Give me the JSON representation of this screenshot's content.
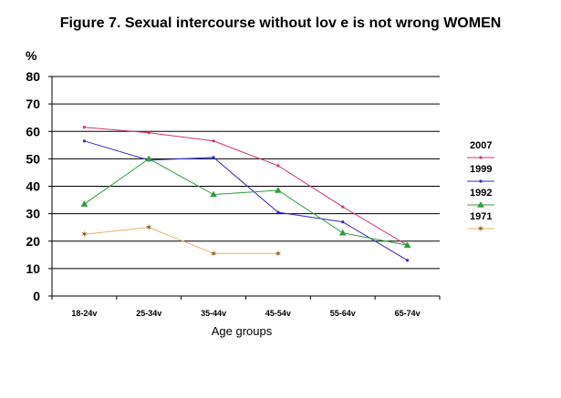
{
  "chart_data": {
    "type": "line",
    "title": "Figure 7. Sexual intercourse without lov e is not wrong WOMEN",
    "xlabel": "Age groups",
    "ylabel": "%",
    "ylim": [
      0,
      80
    ],
    "yticks": [
      0,
      10,
      20,
      30,
      40,
      50,
      60,
      70,
      80
    ],
    "grid": true,
    "legend_position": "right",
    "categories": [
      "18-24v",
      "25-34v",
      "35-44v",
      "45-54v",
      "55-64v",
      "65-74v"
    ],
    "series": [
      {
        "name": "2007",
        "color": "#d6336c",
        "marker": "dot",
        "values": [
          61.5,
          59.5,
          56.5,
          47.5,
          32.5,
          18.5
        ]
      },
      {
        "name": "1999",
        "color": "#2a2ad6",
        "marker": "dot",
        "values": [
          56.5,
          49.5,
          50.5,
          30.5,
          27,
          13
        ]
      },
      {
        "name": "1992",
        "color": "#2f9e3a",
        "marker": "triangle",
        "values": [
          33.5,
          50,
          37,
          38.5,
          23,
          18.5
        ]
      },
      {
        "name": "1971",
        "color": "#e8b36a",
        "marker": "star",
        "values": [
          22.5,
          25,
          15.5,
          15.5,
          null,
          null
        ]
      }
    ]
  }
}
